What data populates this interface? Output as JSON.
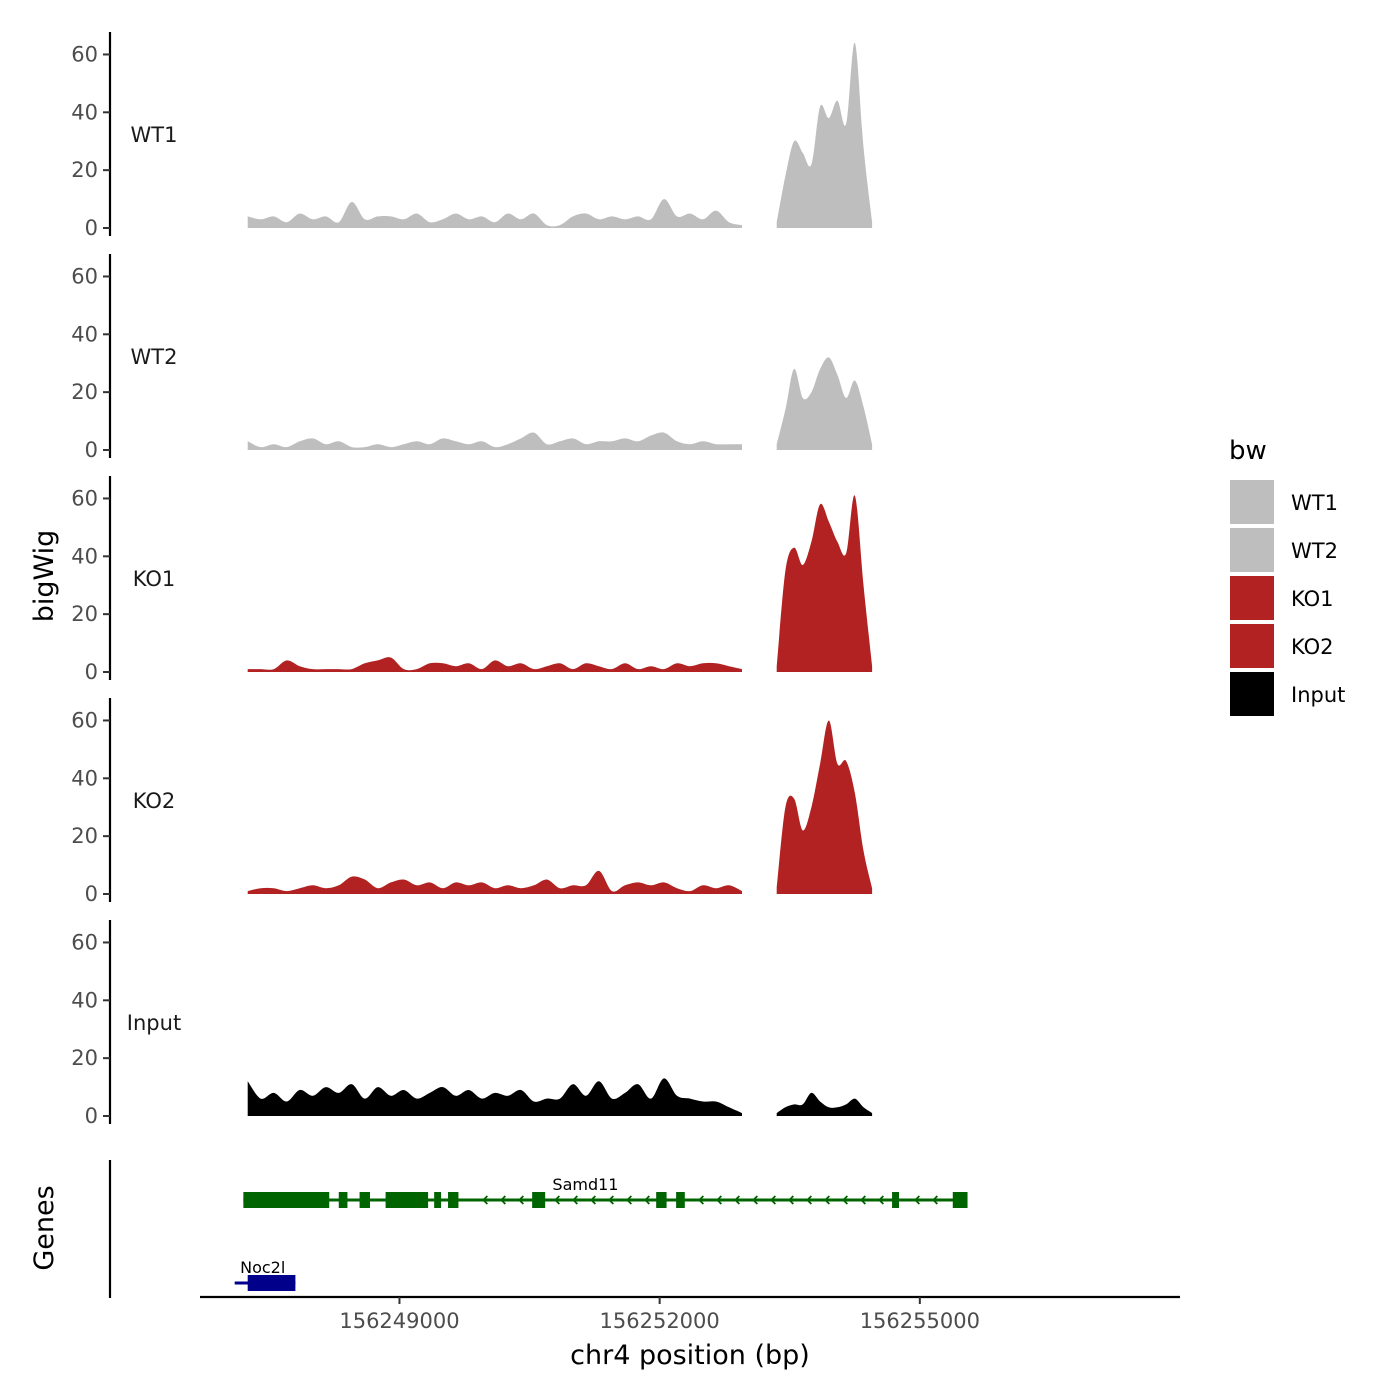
{
  "chart_data": {
    "type": "area",
    "title": "",
    "ylabel": "bigWig",
    "genes_label": "Genes",
    "xlabel": "chr4 position (bp)",
    "xlim": [
      156246700,
      156258000
    ],
    "ylim": [
      0,
      65
    ],
    "x_ticks": [
      156249000,
      156252000,
      156255000
    ],
    "x_tick_labels": [
      "156249000",
      "156252000",
      "156255000"
    ],
    "y_ticks": [
      0,
      20,
      40,
      60
    ],
    "y_tick_labels": [
      "0",
      "20",
      "40",
      "60"
    ],
    "legend": {
      "title": "bw",
      "position": "right",
      "entries": [
        {
          "label": "WT1",
          "color": "#bebebe"
        },
        {
          "label": "WT2",
          "color": "#bebebe"
        },
        {
          "label": "KO1",
          "color": "#b22222"
        },
        {
          "label": "KO2",
          "color": "#b22222"
        },
        {
          "label": "Input",
          "color": "#000000"
        }
      ]
    },
    "series": [
      {
        "name": "WT1",
        "color": "#bebebe",
        "segments": [
          {
            "x": [
              156247250,
              156247400,
              156247550,
              156247700,
              156247850,
              156248000,
              156248150,
              156248300,
              156248450,
              156248600,
              156248750,
              156248900,
              156249050,
              156249200,
              156249350,
              156249500,
              156249650,
              156249800,
              156249950,
              156250100,
              156250250,
              156250400,
              156250550,
              156250700,
              156250850,
              156251000,
              156251150,
              156251300,
              156251450,
              156251600,
              156251750,
              156251900,
              156252050,
              156252200,
              156252350,
              156252500,
              156252650,
              156252800,
              156252950
            ],
            "y": [
              4,
              3,
              4,
              2,
              5,
              3,
              4,
              2,
              9,
              3,
              4,
              4,
              3,
              5,
              2,
              3,
              5,
              3,
              4,
              2,
              5,
              3,
              5,
              1,
              1,
              4,
              5,
              3,
              4,
              3,
              4,
              3,
              10,
              4,
              5,
              3,
              6,
              2,
              1
            ]
          },
          {
            "x": [
              156253350,
              156253450,
              156253550,
              156253650,
              156253750,
              156253850,
              156253950,
              156254050,
              156254150,
              156254250,
              156254350,
              156254450
            ],
            "y": [
              2,
              18,
              30,
              26,
              22,
              42,
              38,
              44,
              36,
              64,
              28,
              2
            ]
          }
        ]
      },
      {
        "name": "WT2",
        "color": "#bebebe",
        "segments": [
          {
            "x": [
              156247250,
              156247400,
              156247550,
              156247700,
              156247850,
              156248000,
              156248150,
              156248300,
              156248450,
              156248600,
              156248750,
              156248900,
              156249050,
              156249200,
              156249350,
              156249500,
              156249650,
              156249800,
              156249950,
              156250100,
              156250250,
              156250400,
              156250550,
              156250700,
              156250850,
              156251000,
              156251150,
              156251300,
              156251450,
              156251600,
              156251750,
              156251900,
              156252050,
              156252200,
              156252350,
              156252500,
              156252650,
              156252800,
              156252950
            ],
            "y": [
              3,
              1,
              2,
              1,
              3,
              4,
              2,
              3,
              1,
              1,
              2,
              1,
              2,
              3,
              2,
              4,
              3,
              2,
              3,
              1,
              2,
              4,
              6,
              2,
              3,
              4,
              2,
              3,
              3,
              4,
              3,
              5,
              6,
              3,
              2,
              3,
              2,
              2,
              2
            ]
          },
          {
            "x": [
              156253350,
              156253450,
              156253550,
              156253650,
              156253750,
              156253850,
              156253950,
              156254050,
              156254150,
              156254250,
              156254350,
              156254450
            ],
            "y": [
              2,
              14,
              28,
              18,
              20,
              28,
              32,
              26,
              18,
              24,
              15,
              2
            ]
          }
        ]
      },
      {
        "name": "KO1",
        "color": "#b22222",
        "segments": [
          {
            "x": [
              156247250,
              156247400,
              156247550,
              156247700,
              156247850,
              156248000,
              156248150,
              156248300,
              156248450,
              156248600,
              156248750,
              156248900,
              156249050,
              156249200,
              156249350,
              156249500,
              156249650,
              156249800,
              156249950,
              156250100,
              156250250,
              156250400,
              156250550,
              156250700,
              156250850,
              156251000,
              156251150,
              156251300,
              156251450,
              156251600,
              156251750,
              156251900,
              156252050,
              156252200,
              156252350,
              156252500,
              156252650,
              156252800,
              156252950
            ],
            "y": [
              1,
              1,
              1,
              4,
              2,
              1,
              1,
              1,
              1,
              3,
              4,
              5,
              1,
              1,
              3,
              3,
              2,
              3,
              1,
              4,
              2,
              3,
              1,
              2,
              3,
              1,
              3,
              2,
              1,
              3,
              1,
              2,
              1,
              3,
              2,
              3,
              3,
              2,
              1
            ]
          },
          {
            "x": [
              156253350,
              156253450,
              156253550,
              156253650,
              156253750,
              156253850,
              156253950,
              156254050,
              156254150,
              156254250,
              156254350,
              156254450
            ],
            "y": [
              2,
              35,
              43,
              37,
              45,
              58,
              52,
              45,
              41,
              61,
              30,
              2
            ]
          }
        ]
      },
      {
        "name": "KO2",
        "color": "#b22222",
        "segments": [
          {
            "x": [
              156247250,
              156247400,
              156247550,
              156247700,
              156247850,
              156248000,
              156248150,
              156248300,
              156248450,
              156248600,
              156248750,
              156248900,
              156249050,
              156249200,
              156249350,
              156249500,
              156249650,
              156249800,
              156249950,
              156250100,
              156250250,
              156250400,
              156250550,
              156250700,
              156250850,
              156251000,
              156251150,
              156251300,
              156251450,
              156251600,
              156251750,
              156251900,
              156252050,
              156252200,
              156252350,
              156252500,
              156252650,
              156252800,
              156252950
            ],
            "y": [
              1,
              2,
              2,
              1,
              2,
              3,
              2,
              3,
              6,
              5,
              2,
              4,
              5,
              3,
              4,
              2,
              4,
              3,
              4,
              2,
              3,
              2,
              3,
              5,
              2,
              3,
              3,
              8,
              1,
              3,
              4,
              3,
              4,
              2,
              1,
              3,
              2,
              3,
              1
            ]
          },
          {
            "x": [
              156253350,
              156253450,
              156253550,
              156253650,
              156253750,
              156253850,
              156253950,
              156254050,
              156254150,
              156254250,
              156254350,
              156254450
            ],
            "y": [
              2,
              30,
              33,
              22,
              30,
              45,
              60,
              45,
              46,
              35,
              15,
              2
            ]
          }
        ]
      },
      {
        "name": "Input",
        "color": "#000000",
        "segments": [
          {
            "x": [
              156247250,
              156247400,
              156247550,
              156247700,
              156247850,
              156248000,
              156248150,
              156248300,
              156248450,
              156248600,
              156248750,
              156248900,
              156249050,
              156249200,
              156249350,
              156249500,
              156249650,
              156249800,
              156249950,
              156250100,
              156250250,
              156250400,
              156250550,
              156250700,
              156250850,
              156251000,
              156251150,
              156251300,
              156251450,
              156251600,
              156251750,
              156251900,
              156252050,
              156252200,
              156252350,
              156252500,
              156252650,
              156252800,
              156252950
            ],
            "y": [
              12,
              6,
              8,
              5,
              9,
              7,
              10,
              8,
              11,
              6,
              10,
              7,
              9,
              6,
              8,
              10,
              7,
              9,
              6,
              8,
              7,
              9,
              5,
              6,
              6,
              11,
              7,
              12,
              6,
              8,
              11,
              6,
              13,
              7,
              6,
              5,
              5,
              3,
              1
            ]
          },
          {
            "x": [
              156253350,
              156253450,
              156253550,
              156253650,
              156253750,
              156253850,
              156253950,
              156254050,
              156254150,
              156254250,
              156254350,
              156254450
            ],
            "y": [
              1,
              3,
              4,
              4,
              8,
              5,
              3,
              3,
              4,
              6,
              3,
              1
            ]
          }
        ]
      }
    ],
    "genes": [
      {
        "name": "Samd11",
        "color": "#006400",
        "start": 156247200,
        "end": 156255550,
        "strand": "-",
        "exons": [
          [
            156247200,
            156248190
          ],
          [
            156248300,
            156248400
          ],
          [
            156248540,
            156248660
          ],
          [
            156248840,
            156249330
          ],
          [
            156249400,
            156249480
          ],
          [
            156249560,
            156249680
          ],
          [
            156250530,
            156250680
          ],
          [
            156251960,
            156252080
          ],
          [
            156252190,
            156252290
          ],
          [
            156254680,
            156254760
          ],
          [
            156255380,
            156255550
          ]
        ]
      },
      {
        "name": "Noc2l",
        "color": "#00008b",
        "start": 156247100,
        "end": 156247800,
        "strand": "+",
        "exons": [
          [
            156247250,
            156247800
          ]
        ]
      }
    ]
  }
}
